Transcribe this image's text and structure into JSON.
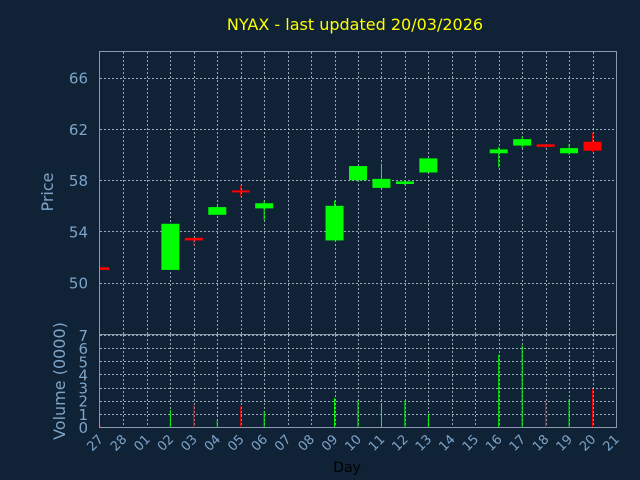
{
  "title": "NYAX - last updated 20/03/2026",
  "colors": {
    "background": "#0f2236",
    "frame": "#8a9aac",
    "grid": "#c8d4e0",
    "up": "#00ff00",
    "down": "#ff0000",
    "title": "#ffff00",
    "axis_text": "#7ea4c8"
  },
  "chart_data": [
    {
      "type": "candlestick",
      "ylabel": "Price",
      "ylim": [
        46,
        68
      ],
      "yticks": [
        50,
        54,
        58,
        62,
        66
      ],
      "grid": true,
      "candles": [
        {
          "date": "27",
          "open": 51.2,
          "high": 51.2,
          "low": 51.0,
          "close": 51.0
        },
        {
          "date": "02",
          "open": 51.0,
          "high": 54.6,
          "low": 51.0,
          "close": 54.6
        },
        {
          "date": "03",
          "open": 53.5,
          "high": 53.5,
          "low": 52.9,
          "close": 53.3
        },
        {
          "date": "04",
          "open": 55.3,
          "high": 56.0,
          "low": 55.3,
          "close": 55.9
        },
        {
          "date": "05",
          "open": 57.2,
          "high": 57.6,
          "low": 56.7,
          "close": 57.1
        },
        {
          "date": "06",
          "open": 55.8,
          "high": 56.4,
          "low": 54.9,
          "close": 56.2
        },
        {
          "date": "09",
          "open": 53.3,
          "high": 56.4,
          "low": 53.3,
          "close": 56.0
        },
        {
          "date": "10",
          "open": 58.0,
          "high": 59.1,
          "low": 57.9,
          "close": 59.1
        },
        {
          "date": "11",
          "open": 57.4,
          "high": 59.3,
          "low": 57.4,
          "close": 58.1
        },
        {
          "date": "12",
          "open": 57.7,
          "high": 58.0,
          "low": 57.6,
          "close": 57.9
        },
        {
          "date": "13",
          "open": 58.6,
          "high": 59.7,
          "low": 58.6,
          "close": 59.7
        },
        {
          "date": "16",
          "open": 60.1,
          "high": 60.6,
          "low": 59.0,
          "close": 60.4
        },
        {
          "date": "17",
          "open": 60.7,
          "high": 61.4,
          "low": 60.5,
          "close": 61.2
        },
        {
          "date": "18",
          "open": 60.8,
          "high": 60.8,
          "low": 60.5,
          "close": 60.6
        },
        {
          "date": "19",
          "open": 60.1,
          "high": 60.8,
          "low": 60.0,
          "close": 60.5
        },
        {
          "date": "20",
          "open": 61.0,
          "high": 61.7,
          "low": 60.2,
          "close": 60.3
        }
      ]
    },
    {
      "type": "bar",
      "ylabel": "Volume (0000)",
      "ylim": [
        0,
        7
      ],
      "yticks": [
        0,
        1,
        2,
        3,
        4,
        5,
        6,
        7
      ],
      "xlabel": "Day",
      "categories": [
        "27",
        "28",
        "01",
        "02",
        "03",
        "04",
        "05",
        "06",
        "07",
        "08",
        "09",
        "10",
        "11",
        "12",
        "13",
        "14",
        "15",
        "16",
        "17",
        "18",
        "19",
        "20",
        "21"
      ],
      "volumes": [
        {
          "date": "27",
          "value": 0.1,
          "direction": "down"
        },
        {
          "date": "02",
          "value": 1.3,
          "direction": "up"
        },
        {
          "date": "03",
          "value": 1.7,
          "direction": "down"
        },
        {
          "date": "04",
          "value": 0.6,
          "direction": "up"
        },
        {
          "date": "05",
          "value": 1.6,
          "direction": "down"
        },
        {
          "date": "06",
          "value": 1.2,
          "direction": "up"
        },
        {
          "date": "09",
          "value": 2.2,
          "direction": "up"
        },
        {
          "date": "10",
          "value": 2.0,
          "direction": "up"
        },
        {
          "date": "11",
          "value": 1.7,
          "direction": "up"
        },
        {
          "date": "12",
          "value": 2.0,
          "direction": "up"
        },
        {
          "date": "13",
          "value": 1.0,
          "direction": "up"
        },
        {
          "date": "16",
          "value": 5.5,
          "direction": "up"
        },
        {
          "date": "17",
          "value": 6.2,
          "direction": "up"
        },
        {
          "date": "18",
          "value": 1.9,
          "direction": "down"
        },
        {
          "date": "19",
          "value": 2.1,
          "direction": "up"
        },
        {
          "date": "20",
          "value": 2.9,
          "direction": "down"
        }
      ]
    }
  ]
}
